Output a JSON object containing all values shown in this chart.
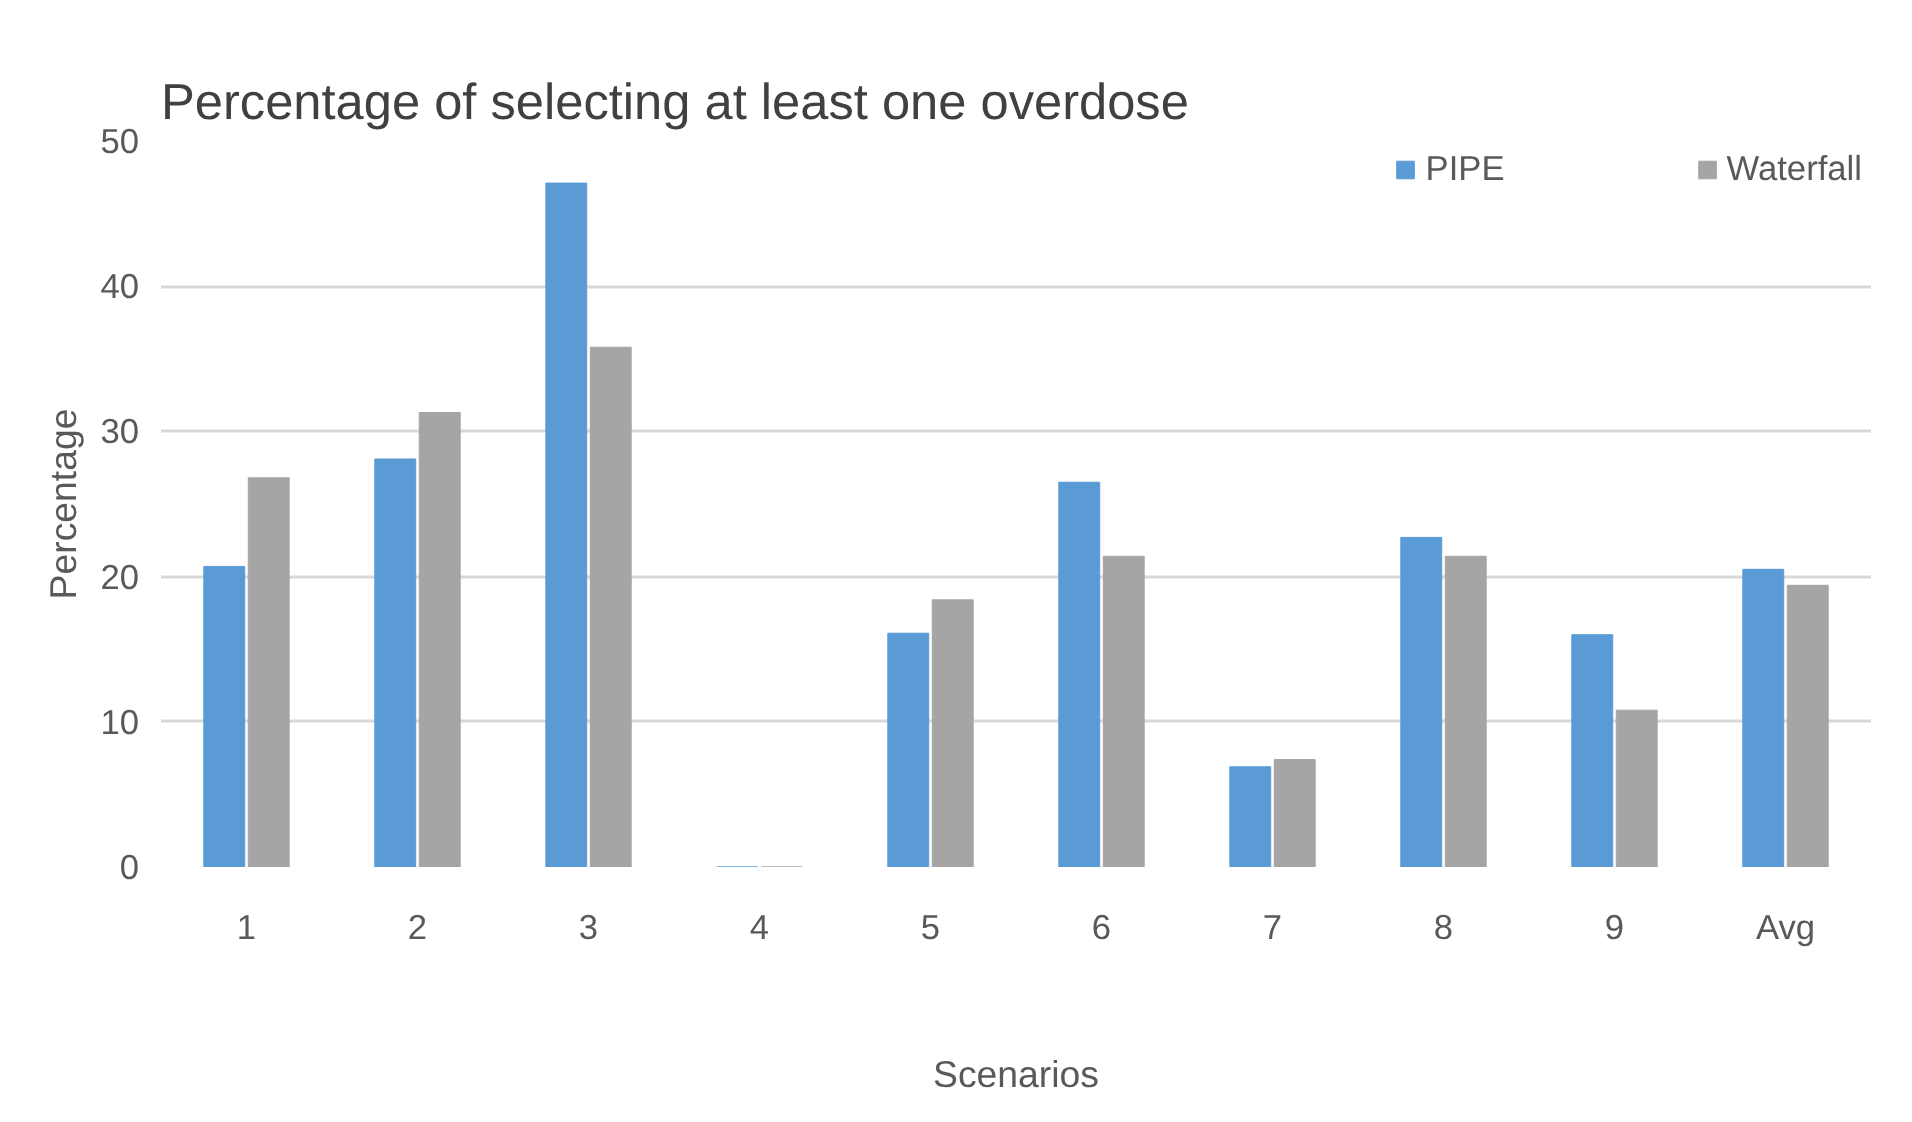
{
  "chart_data": {
    "type": "bar",
    "title": "Percentage of selecting at least one overdose",
    "xlabel": "Scenarios",
    "ylabel": "Percentage",
    "categories": [
      "1",
      "2",
      "3",
      "4",
      "5",
      "6",
      "7",
      "8",
      "9",
      "Avg"
    ],
    "series": [
      {
        "name": "PIPE",
        "color": "#5b9bd5",
        "values": [
          20.7,
          28.1,
          47.1,
          0,
          16.1,
          26.5,
          6.9,
          22.7,
          16.0,
          20.5
        ]
      },
      {
        "name": "Waterfall",
        "color": "#a5a5a5",
        "values": [
          26.8,
          31.3,
          35.8,
          0,
          18.4,
          21.4,
          7.4,
          21.4,
          10.8,
          19.4
        ]
      }
    ],
    "ylim": [
      0,
      50
    ],
    "yticks": [
      0,
      10,
      20,
      30,
      40,
      50
    ],
    "grid": "y",
    "legend": "top right"
  }
}
